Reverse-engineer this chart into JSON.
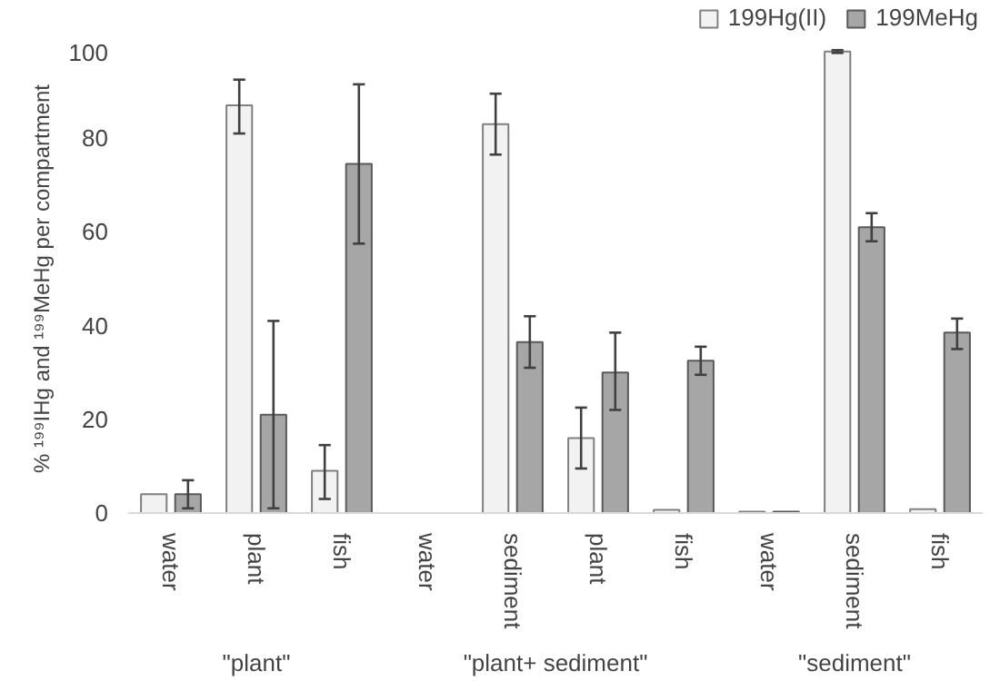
{
  "chart_data": {
    "type": "bar",
    "ylabel": "% ¹⁹⁹IHg and ¹⁹⁹MeHg per compartment",
    "categories": [
      "water",
      "plant",
      "fish",
      "water",
      "sediment",
      "plant",
      "fish",
      "water",
      "sediment",
      "fish"
    ],
    "annotations": [
      "\"plant\"",
      "\"plant+ sediment\"",
      "\"sediment\""
    ],
    "series": [
      {
        "name": "199Hg(II)",
        "color": "#f2f2f2",
        "values": [
          4,
          87,
          9,
          null,
          83,
          16,
          0.7,
          0.3,
          98.5,
          0.8
        ],
        "errors": [
          null,
          [
            81,
            92.5
          ],
          [
            3,
            14.5
          ],
          null,
          [
            76.5,
            89.5
          ],
          [
            9.5,
            22.5
          ],
          null,
          null,
          [
            98.2,
            98.8
          ],
          null
        ]
      },
      {
        "name": "199MeHg",
        "color": "#a6a6a6",
        "values": [
          4,
          21,
          74.5,
          null,
          36.5,
          30,
          32.5,
          0.3,
          61,
          38.5
        ],
        "errors": [
          [
            1,
            7
          ],
          [
            1,
            41
          ],
          [
            57.5,
            91.5
          ],
          null,
          [
            31,
            42
          ],
          [
            22,
            38.5
          ],
          [
            29.5,
            35.5
          ],
          null,
          [
            58,
            64
          ],
          [
            35,
            41.5
          ]
        ]
      }
    ],
    "ylim": [
      0,
      100
    ],
    "yticks": [
      0,
      20,
      40,
      60,
      80,
      100
    ],
    "grid": false,
    "legend": "top right"
  }
}
